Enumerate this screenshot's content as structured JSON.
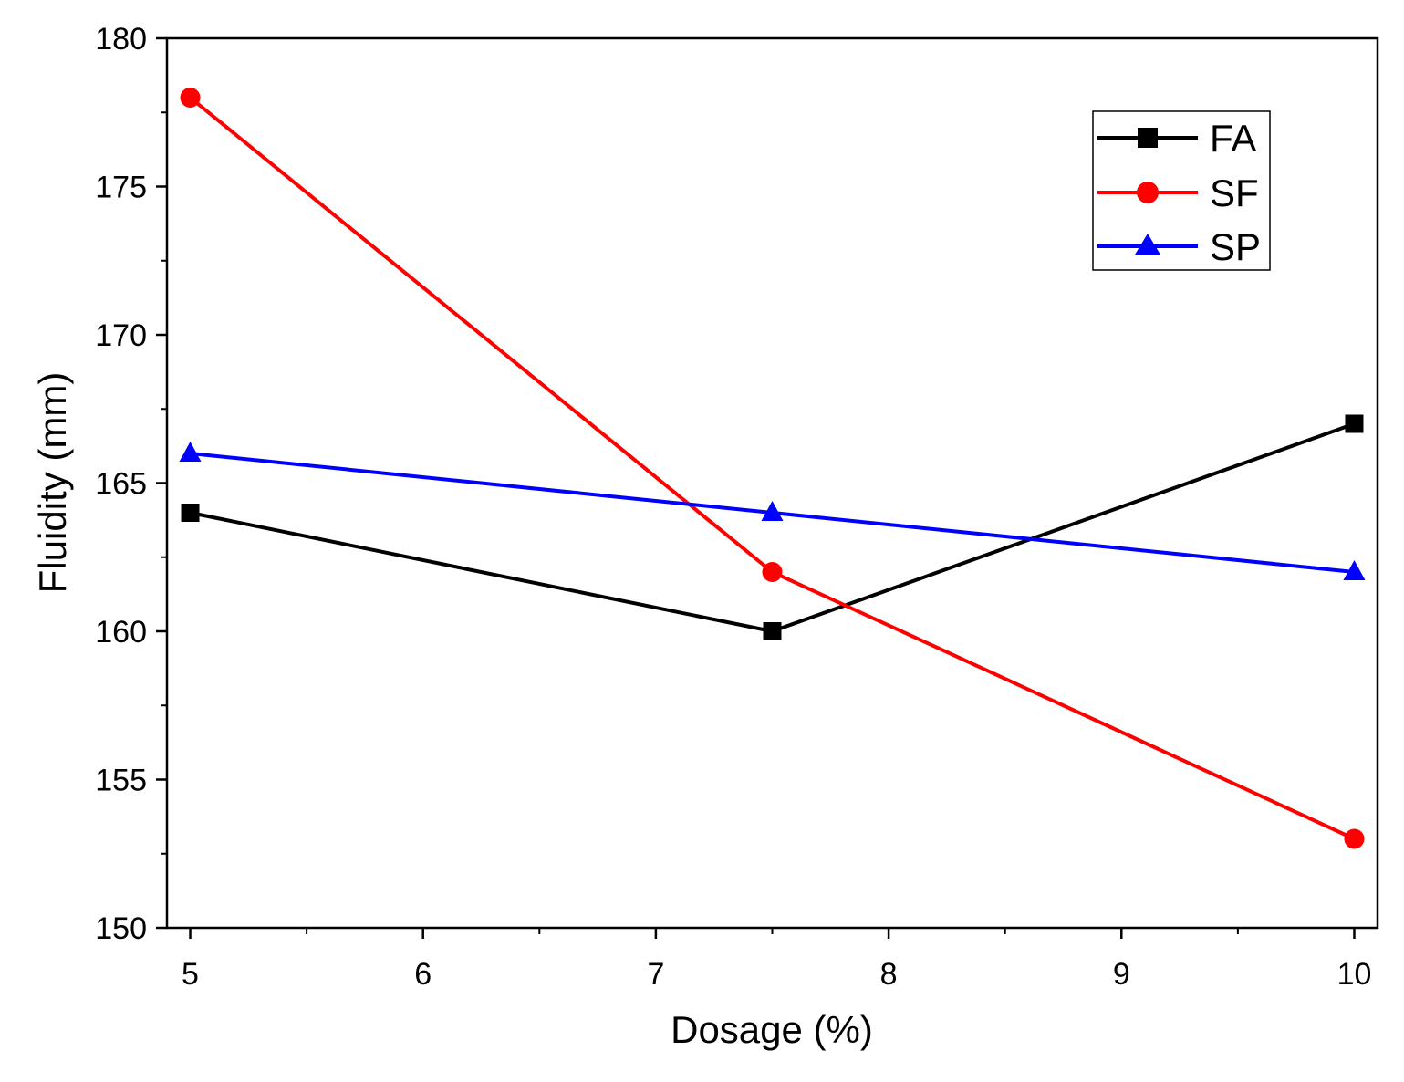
{
  "chart_data": {
    "type": "line",
    "title": "",
    "xlabel": "Dosage (%)",
    "ylabel": "Fluidity (mm)",
    "xlim": [
      4.9,
      10.1
    ],
    "ylim": [
      150,
      180
    ],
    "x_ticks": [
      5,
      6,
      7,
      8,
      9,
      10
    ],
    "x_tick_labels": [
      "5",
      "6",
      "7",
      "8",
      "9",
      "10"
    ],
    "y_ticks": [
      150,
      155,
      160,
      165,
      170,
      175,
      180
    ],
    "y_tick_labels": [
      "150",
      "155",
      "160",
      "165",
      "170",
      "175",
      "180"
    ],
    "grid": false,
    "legend_position": "top-right",
    "series": [
      {
        "name": "FA",
        "color": "#000000",
        "marker": "square",
        "x": [
          5,
          7.5,
          10
        ],
        "y": [
          164,
          160,
          167
        ]
      },
      {
        "name": "SF",
        "color": "#ff0000",
        "marker": "circle",
        "x": [
          5,
          7.5,
          10
        ],
        "y": [
          178,
          162,
          153
        ]
      },
      {
        "name": "SP",
        "color": "#0000ff",
        "marker": "triangle",
        "x": [
          5,
          7.5,
          10
        ],
        "y": [
          166,
          164,
          162
        ]
      }
    ]
  }
}
